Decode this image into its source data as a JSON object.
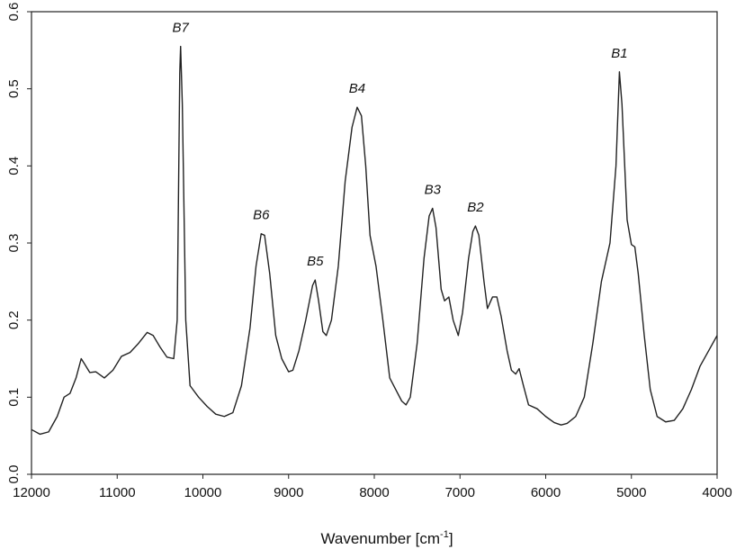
{
  "chart_data": {
    "type": "line",
    "xlabel": {
      "text": "Wavenumber [cm",
      "sup": "-1",
      "end": "]"
    },
    "xlim": [
      12000,
      4000
    ],
    "xticks": [
      12000,
      11000,
      10000,
      9000,
      8000,
      7000,
      6000,
      5000,
      4000
    ],
    "ylim": [
      0,
      0.6
    ],
    "yticks": [
      {
        "value": 0,
        "label": "0.0"
      },
      0.1,
      0.2,
      0.3,
      0.4,
      0.5,
      0.6
    ],
    "grid": false,
    "color": "#222222",
    "x": [
      12000,
      11900,
      11800,
      11700,
      11620,
      11550,
      11480,
      11420,
      11380,
      11320,
      11250,
      11150,
      11050,
      10950,
      10850,
      10750,
      10650,
      10580,
      10500,
      10420,
      10340,
      10300,
      10270,
      10260,
      10240,
      10200,
      10150,
      10050,
      9950,
      9850,
      9750,
      9650,
      9550,
      9450,
      9380,
      9320,
      9280,
      9220,
      9150,
      9080,
      9000,
      8950,
      8880,
      8800,
      8720,
      8690,
      8650,
      8600,
      8560,
      8500,
      8420,
      8340,
      8260,
      8200,
      8150,
      8100,
      8050,
      7980,
      7900,
      7820,
      7750,
      7680,
      7630,
      7580,
      7500,
      7420,
      7360,
      7320,
      7280,
      7220,
      7180,
      7130,
      7080,
      7020,
      6970,
      6900,
      6850,
      6820,
      6780,
      6720,
      6680,
      6620,
      6570,
      6520,
      6450,
      6400,
      6350,
      6310,
      6260,
      6200,
      6100,
      6000,
      5900,
      5820,
      5750,
      5650,
      5550,
      5450,
      5350,
      5250,
      5180,
      5140,
      5110,
      5050,
      5000,
      4960,
      4920,
      4850,
      4780,
      4700,
      4600,
      4500,
      4400,
      4300,
      4200,
      4100,
      4000
    ],
    "values": [
      0.058,
      0.052,
      0.055,
      0.075,
      0.1,
      0.105,
      0.125,
      0.15,
      0.143,
      0.132,
      0.133,
      0.125,
      0.135,
      0.153,
      0.158,
      0.17,
      0.184,
      0.18,
      0.165,
      0.152,
      0.15,
      0.2,
      0.52,
      0.555,
      0.48,
      0.2,
      0.115,
      0.1,
      0.088,
      0.078,
      0.075,
      0.08,
      0.115,
      0.19,
      0.27,
      0.312,
      0.31,
      0.26,
      0.18,
      0.15,
      0.133,
      0.135,
      0.16,
      0.2,
      0.245,
      0.252,
      0.225,
      0.185,
      0.18,
      0.2,
      0.27,
      0.38,
      0.45,
      0.476,
      0.465,
      0.4,
      0.31,
      0.27,
      0.2,
      0.125,
      0.11,
      0.095,
      0.09,
      0.1,
      0.17,
      0.28,
      0.335,
      0.345,
      0.32,
      0.24,
      0.225,
      0.23,
      0.2,
      0.18,
      0.21,
      0.28,
      0.315,
      0.322,
      0.31,
      0.25,
      0.215,
      0.23,
      0.23,
      0.205,
      0.16,
      0.135,
      0.13,
      0.137,
      0.115,
      0.09,
      0.085,
      0.075,
      0.067,
      0.064,
      0.066,
      0.075,
      0.1,
      0.17,
      0.25,
      0.3,
      0.4,
      0.522,
      0.48,
      0.33,
      0.298,
      0.295,
      0.26,
      0.18,
      0.11,
      0.075,
      0.068,
      0.07,
      0.085,
      0.11,
      0.14,
      0.16,
      0.18
    ],
    "annotations": [
      {
        "text": "B7",
        "x": 10260,
        "y": 0.555
      },
      {
        "text": "B6",
        "x": 9320,
        "y": 0.312
      },
      {
        "text": "B5",
        "x": 8690,
        "y": 0.252
      },
      {
        "text": "B4",
        "x": 8200,
        "y": 0.476
      },
      {
        "text": "B3",
        "x": 7320,
        "y": 0.345
      },
      {
        "text": "B2",
        "x": 6820,
        "y": 0.322
      },
      {
        "text": "B1",
        "x": 5140,
        "y": 0.522
      }
    ]
  }
}
